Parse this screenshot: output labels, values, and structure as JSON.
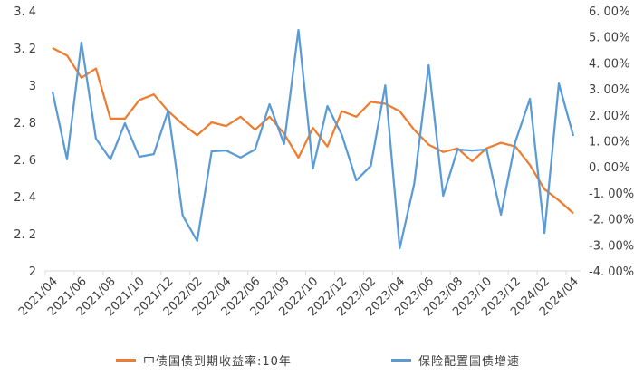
{
  "chart_data": {
    "type": "line",
    "title": "",
    "xlabel": "",
    "ylabel": "",
    "y2label": "",
    "x": [
      "2021/04",
      "2021/05",
      "2021/06",
      "2021/07",
      "2021/08",
      "2021/09",
      "2021/10",
      "2021/11",
      "2021/12",
      "2022/01",
      "2022/02",
      "2022/03",
      "2022/04",
      "2022/05",
      "2022/06",
      "2022/07",
      "2022/08",
      "2022/09",
      "2022/10",
      "2022/11",
      "2022/12",
      "2023/01",
      "2023/02",
      "2023/03",
      "2023/04",
      "2023/05",
      "2023/06",
      "2023/07",
      "2023/08",
      "2023/09",
      "2023/10",
      "2023/11",
      "2023/12",
      "2024/01",
      "2024/02",
      "2024/03",
      "2024/04"
    ],
    "x_tick_labels": [
      "2021/04",
      "2021/06",
      "2021/08",
      "2021/10",
      "2021/12",
      "2022/02",
      "2022/04",
      "2022/06",
      "2022/08",
      "2022/10",
      "2022/12",
      "2023/02",
      "2023/04",
      "2023/06",
      "2023/08",
      "2023/10",
      "2023/12",
      "2024/02",
      "2024/04"
    ],
    "ylim": [
      2,
      3.4
    ],
    "y_ticks": [
      "2",
      "2.2",
      "2.4",
      "2.6",
      "2.8",
      "3",
      "3.2",
      "3.4"
    ],
    "y2lim": [
      -4,
      6
    ],
    "y2_ticks": [
      "-4.00%",
      "-3.00%",
      "-2.00%",
      "-1.00%",
      "0.00%",
      "1.00%",
      "2.00%",
      "3.00%",
      "4.00%",
      "5.00%",
      "6.00%"
    ],
    "grid": false,
    "legend_position": "bottom",
    "series": [
      {
        "name": "中债国债到期收益率:10年",
        "axis": "left",
        "color": "#ED7D31",
        "values": [
          3.2,
          3.16,
          3.04,
          3.09,
          2.82,
          2.82,
          2.92,
          2.95,
          2.86,
          2.79,
          2.73,
          2.8,
          2.78,
          2.83,
          2.76,
          2.83,
          2.74,
          2.61,
          2.77,
          2.67,
          2.86,
          2.83,
          2.91,
          2.9,
          2.86,
          2.76,
          2.68,
          2.64,
          2.66,
          2.59,
          2.66,
          2.69,
          2.67,
          2.57,
          2.44,
          2.38,
          2.31
        ]
      },
      {
        "name": "保险配置国债增速",
        "axis": "right",
        "unit": "%",
        "color": "#5B9BD5",
        "values": [
          2.9,
          0.29,
          4.78,
          1.09,
          0.29,
          1.68,
          0.39,
          0.49,
          2.17,
          -1.87,
          -2.85,
          0.6,
          0.63,
          0.36,
          0.67,
          2.41,
          0.88,
          5.27,
          -0.06,
          2.34,
          1.23,
          -0.52,
          0.04,
          3.14,
          -3.13,
          -0.66,
          3.91,
          -1.11,
          0.67,
          0.63,
          0.67,
          -1.84,
          0.98,
          2.62,
          -2.54,
          3.21,
          1.19
        ]
      }
    ]
  },
  "legend": {
    "items": [
      {
        "label": "中债国债到期收益率:10年",
        "color": "#ED7D31"
      },
      {
        "label": "保险配置国债增速",
        "color": "#5B9BD5"
      }
    ]
  }
}
